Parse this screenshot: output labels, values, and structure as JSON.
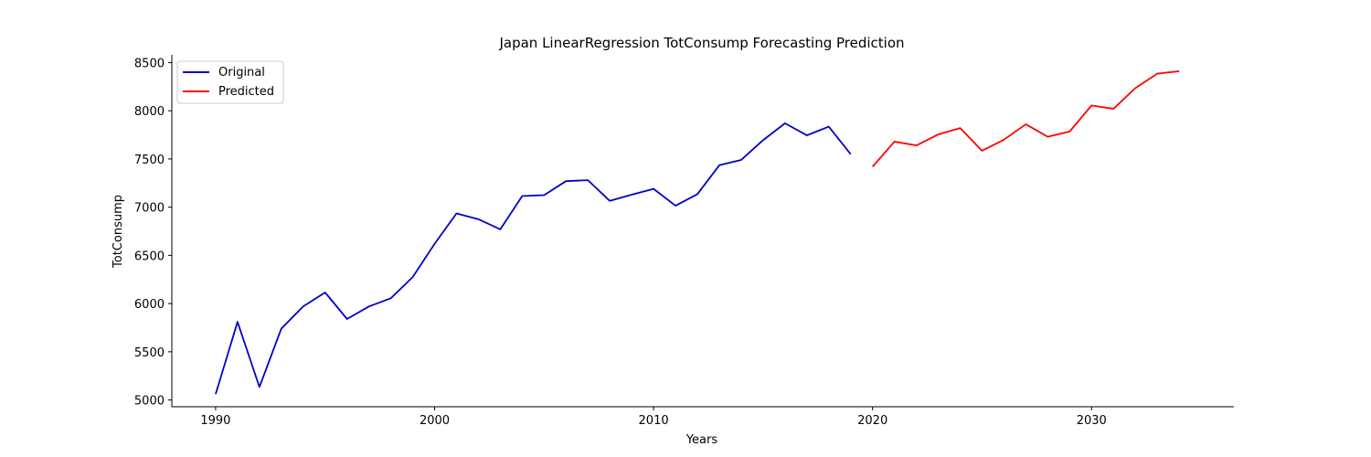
{
  "chart_data": {
    "type": "line",
    "title": "Japan LinearRegression TotConsump Forecasting Prediction",
    "xlabel": "Years",
    "ylabel": "TotConsump",
    "xlim": [
      1988,
      2036.5
    ],
    "ylim": [
      4930,
      8580
    ],
    "x_ticks": [
      1990,
      2000,
      2010,
      2020,
      2030
    ],
    "y_ticks": [
      5000,
      5500,
      6000,
      6500,
      7000,
      7500,
      8000,
      8500
    ],
    "grid": false,
    "legend_position": "top-left",
    "series": [
      {
        "name": "Original",
        "color": "#0000cc",
        "x": [
          1990,
          1991,
          1992,
          1993,
          1994,
          1995,
          1996,
          1997,
          1998,
          1999,
          2000,
          2001,
          2002,
          2003,
          2004,
          2005,
          2006,
          2007,
          2008,
          2009,
          2010,
          2011,
          2012,
          2013,
          2014,
          2015,
          2016,
          2017,
          2018,
          2019
        ],
        "y": [
          5060,
          5810,
          5135,
          5740,
          5970,
          6115,
          5840,
          5970,
          6055,
          6275,
          6620,
          6935,
          6875,
          6770,
          7115,
          7125,
          7270,
          7280,
          7065,
          7130,
          7190,
          7015,
          7135,
          7435,
          7490,
          7695,
          7870,
          7745,
          7835,
          7550
        ]
      },
      {
        "name": "Predicted",
        "color": "#ff0000",
        "x": [
          2020,
          2021,
          2022,
          2023,
          2024,
          2025,
          2026,
          2027,
          2028,
          2029,
          2030,
          2031,
          2032,
          2033,
          2034
        ],
        "y": [
          7420,
          7680,
          7640,
          7755,
          7820,
          7585,
          7700,
          7860,
          7730,
          7785,
          8055,
          8020,
          8235,
          8385,
          8410
        ]
      }
    ]
  }
}
